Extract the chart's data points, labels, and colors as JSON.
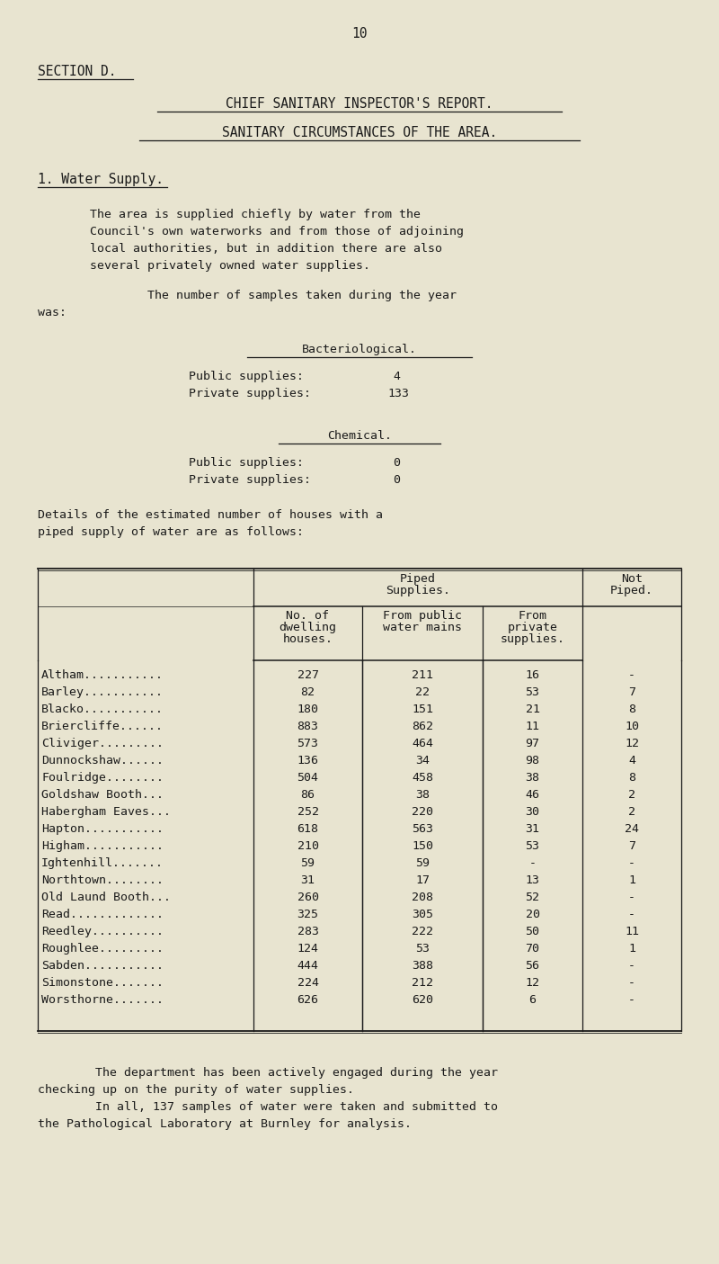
{
  "bg_color": "#e8e4d0",
  "page_number": "10",
  "section_label": "SECTION D.",
  "title1": "CHIEF SANITARY INSPECTOR'S REPORT.",
  "title2": "SANITARY CIRCUMSTANCES OF THE AREA.",
  "section1_label": "1. Water Supply.",
  "para1_lines": [
    "The area is supplied chiefly by water from the",
    "Council's own waterworks and from those of adjoining",
    "local authorities, but in addition there are also",
    "several privately owned water supplies."
  ],
  "para2_line1": "        The number of samples taken during the year",
  "para2_line2": "was:",
  "bacteriological_header": "Bacteriological.",
  "bact_public_label": "Public supplies:",
  "bact_public_val": "4",
  "bact_private_label": "Private supplies:",
  "bact_private_val": "133",
  "chemical_header": "Chemical.",
  "chem_public_label": "Public supplies:",
  "chem_public_val": "0",
  "chem_private_label": "Private supplies:",
  "chem_private_val": "0",
  "table_intro_lines": [
    "Details of the estimated number of houses with a",
    "piped supply of water are as follows:"
  ],
  "table_data": [
    [
      "Altham",
      "227",
      "211",
      "16",
      "-"
    ],
    [
      "Barley",
      "82",
      "22",
      "53",
      "7"
    ],
    [
      "Blacko",
      "180",
      "151",
      "21",
      "8"
    ],
    [
      "Briercliffe",
      "883",
      "862",
      "11",
      "10"
    ],
    [
      "Cliviger",
      "573",
      "464",
      "97",
      "12"
    ],
    [
      "Dunnockshaw",
      "136",
      "34",
      "98",
      "4"
    ],
    [
      "Foulridge",
      "504",
      "458",
      "38",
      "8"
    ],
    [
      "Goldshaw Booth",
      "86",
      "38",
      "46",
      "2"
    ],
    [
      "Habergham Eaves",
      "252",
      "220",
      "30",
      "2"
    ],
    [
      "Hapton",
      "618",
      "563",
      "31",
      "24"
    ],
    [
      "Higham",
      "210",
      "150",
      "53",
      "7"
    ],
    [
      "Ightenhill",
      "59",
      "59",
      "-",
      "-"
    ],
    [
      "Northtown",
      "31",
      "17",
      "13",
      "1"
    ],
    [
      "Old Laund Booth",
      "260",
      "208",
      "52",
      "-"
    ],
    [
      "Read",
      "325",
      "305",
      "20",
      "-"
    ],
    [
      "Reedley",
      "283",
      "222",
      "50",
      "11"
    ],
    [
      "Roughlee",
      "124",
      "53",
      "70",
      "1"
    ],
    [
      "Sabden",
      "444",
      "388",
      "56",
      "-"
    ],
    [
      "Simonstone",
      "224",
      "212",
      "12",
      "-"
    ],
    [
      "Worsthorne",
      "626",
      "620",
      "6",
      "-"
    ]
  ],
  "footer_lines": [
    "        The department has been actively engaged during the year",
    "checking up on the purity of water supplies.",
    "        In all, 137 samples of water were taken and submitted to",
    "the Pathological Laboratory at Burnley for analysis."
  ],
  "font_color": "#1a1a1a",
  "font_size": 10.5,
  "font_size_small": 9.5
}
